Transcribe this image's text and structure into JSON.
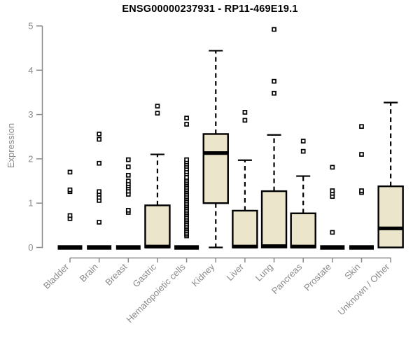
{
  "chart_data": {
    "type": "boxplot",
    "title": "ENSG00000237931 - RP11-469E19.1",
    "ylabel": "Expression",
    "xlabel": "",
    "ylim": [
      0,
      5
    ],
    "yticks": [
      0,
      1,
      2,
      3,
      4,
      5
    ],
    "grid": false,
    "legend": "none",
    "colors": {
      "box_fill": "#EBE5CB",
      "box_stroke": "#000000",
      "median": "#000000",
      "whisker": "#000000",
      "outlier_fill": "#ffffff",
      "outlier_stroke": "#000000",
      "axis": "#8a8a8a",
      "tick_label": "#8a8a8a",
      "title": "#000000",
      "background": "#ffffff"
    },
    "categories": [
      "Bladder",
      "Brain",
      "Breast",
      "Gastric",
      "Hematopoietic cells",
      "Kidney",
      "Liver",
      "Lung",
      "Pancreas",
      "Prostate",
      "Skin",
      "Unknown / Other"
    ],
    "groups": [
      {
        "category": "Bladder",
        "collapsed": true,
        "q1": 0,
        "median": 0,
        "q3": 0,
        "whisker_low": 0,
        "whisker_high": 0,
        "outliers": [
          0.65,
          0.72,
          1.26,
          1.3,
          1.7
        ]
      },
      {
        "category": "Brain",
        "collapsed": true,
        "q1": 0,
        "median": 0,
        "q3": 0,
        "whisker_low": 0,
        "whisker_high": 0,
        "outliers": [
          0.57,
          1.06,
          1.13,
          1.2,
          1.26,
          1.9,
          2.44,
          2.56
        ]
      },
      {
        "category": "Breast",
        "collapsed": true,
        "q1": 0,
        "median": 0,
        "q3": 0,
        "whisker_low": 0,
        "whisker_high": 0,
        "outliers": [
          0.79,
          0.84,
          1.2,
          1.27,
          1.34,
          1.39,
          1.44,
          1.5,
          1.63,
          1.82,
          1.98
        ]
      },
      {
        "category": "Gastric",
        "collapsed": false,
        "q1": 0,
        "median": 0.02,
        "q3": 0.95,
        "whisker_low": 0,
        "whisker_high": 2.1,
        "outliers": [
          3.03,
          3.19
        ]
      },
      {
        "category": "Hematopoietic cells",
        "collapsed": true,
        "q1": 0,
        "median": 0,
        "q3": 0,
        "whisker_low": 0,
        "whisker_high": 0,
        "outliers": [
          0.26,
          0.3,
          0.34,
          0.38,
          0.42,
          0.46,
          0.5,
          0.54,
          0.58,
          0.62,
          0.66,
          0.7,
          0.74,
          0.78,
          0.82,
          0.86,
          0.9,
          0.94,
          0.98,
          1.02,
          1.06,
          1.1,
          1.14,
          1.18,
          1.22,
          1.26,
          1.3,
          1.34,
          1.38,
          1.42,
          1.46,
          1.5,
          1.54,
          1.58,
          1.66,
          1.71,
          1.77,
          1.83,
          1.88,
          1.93,
          1.98,
          2.78,
          2.92
        ]
      },
      {
        "category": "Kidney",
        "collapsed": false,
        "q1": 1.0,
        "median": 2.13,
        "q3": 2.56,
        "whisker_low": 0,
        "whisker_high": 4.44,
        "outliers": []
      },
      {
        "category": "Liver",
        "collapsed": false,
        "q1": 0,
        "median": 0.02,
        "q3": 0.83,
        "whisker_low": 0,
        "whisker_high": 1.97,
        "outliers": [
          2.87,
          3.05
        ]
      },
      {
        "category": "Lung",
        "collapsed": false,
        "q1": 0,
        "median": 0.03,
        "q3": 1.27,
        "whisker_low": 0,
        "whisker_high": 2.54,
        "outliers": [
          3.48,
          3.75,
          4.92
        ]
      },
      {
        "category": "Pancreas",
        "collapsed": false,
        "q1": 0,
        "median": 0.02,
        "q3": 0.77,
        "whisker_low": 0,
        "whisker_high": 1.61,
        "outliers": [
          2.17,
          2.4
        ]
      },
      {
        "category": "Prostate",
        "collapsed": true,
        "q1": 0,
        "median": 0,
        "q3": 0,
        "whisker_low": 0,
        "whisker_high": 0,
        "outliers": [
          0.34,
          1.15,
          1.22,
          1.28,
          1.81
        ]
      },
      {
        "category": "Skin",
        "collapsed": true,
        "q1": 0,
        "median": 0,
        "q3": 0,
        "whisker_low": 0,
        "whisker_high": 0,
        "outliers": [
          1.24,
          1.28,
          2.1,
          2.73
        ]
      },
      {
        "category": "Unknown / Other",
        "collapsed": false,
        "q1": 0,
        "median": 0.43,
        "q3": 1.38,
        "whisker_low": 0,
        "whisker_high": 3.27,
        "outliers": []
      }
    ]
  }
}
